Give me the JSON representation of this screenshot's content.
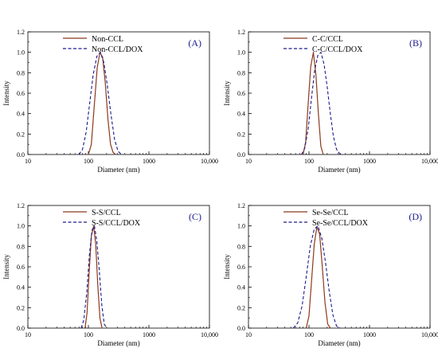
{
  "figure": {
    "panels_count": 4
  },
  "chart_data": [
    {
      "type": "line",
      "panel_label": "(A)",
      "xscale": "log",
      "xlim": [
        10,
        10000
      ],
      "ylim": [
        0,
        1.2
      ],
      "xticks": [
        "10",
        "100",
        "1000",
        "10,000"
      ],
      "yticks": [
        "0.0",
        "0.2",
        "0.4",
        "0.6",
        "0.8",
        "1.0",
        "1.2"
      ],
      "xlabel": "Diameter (nm)",
      "ylabel": "Intensity",
      "legend_position": "top",
      "series": [
        {
          "name": "Non-CCL",
          "style": "solid",
          "color": "#8b3a1c",
          "x": [
            100,
            112,
            125,
            140,
            155,
            172,
            190,
            210,
            232,
            256,
            282
          ],
          "y": [
            0.0,
            0.1,
            0.48,
            0.85,
            1.0,
            0.95,
            0.7,
            0.35,
            0.1,
            0.02,
            0.0
          ]
        },
        {
          "name": "Non-CCL/DOX",
          "style": "dashed",
          "color": "#1a1a8c",
          "x": [
            70,
            80,
            92,
            105,
            120,
            138,
            158,
            180,
            205,
            235,
            270,
            310,
            355
          ],
          "y": [
            0.0,
            0.05,
            0.22,
            0.5,
            0.78,
            0.96,
            1.0,
            0.9,
            0.68,
            0.4,
            0.15,
            0.03,
            0.0
          ]
        }
      ]
    },
    {
      "type": "line",
      "panel_label": "(B)",
      "xscale": "log",
      "xlim": [
        10,
        10000
      ],
      "ylim": [
        0,
        1.2
      ],
      "xticks": [
        "10",
        "100",
        "1000",
        "10,000"
      ],
      "yticks": [
        "0.0",
        "0.2",
        "0.4",
        "0.6",
        "0.8",
        "1.0",
        "1.2"
      ],
      "xlabel": "Diameter (nm)",
      "ylabel": "Intensity",
      "legend_position": "top",
      "series": [
        {
          "name": "C-C/CCL",
          "style": "solid",
          "color": "#8b3a1c",
          "x": [
            80,
            88,
            97,
            107,
            118,
            130,
            143,
            157,
            172
          ],
          "y": [
            0.0,
            0.12,
            0.5,
            0.86,
            1.0,
            0.78,
            0.4,
            0.08,
            0.0
          ]
        },
        {
          "name": "C-C/CCL/DOX",
          "style": "dashed",
          "color": "#1a1a8c",
          "x": [
            75,
            85,
            97,
            110,
            124,
            140,
            158,
            178,
            200,
            225,
            253,
            285,
            320,
            360
          ],
          "y": [
            0.0,
            0.06,
            0.25,
            0.55,
            0.82,
            0.97,
            1.0,
            0.88,
            0.66,
            0.4,
            0.18,
            0.05,
            0.01,
            0.0
          ]
        }
      ]
    },
    {
      "type": "line",
      "panel_label": "(C)",
      "xscale": "log",
      "xlim": [
        10,
        10000
      ],
      "ylim": [
        0,
        1.2
      ],
      "xticks": [
        "10",
        "100",
        "1000",
        "10,000"
      ],
      "yticks": [
        "0.0",
        "0.2",
        "0.4",
        "0.6",
        "0.8",
        "1.0",
        "1.2"
      ],
      "xlabel": "Diameter (nm)",
      "ylabel": "Intensity",
      "legend_position": "top",
      "series": [
        {
          "name": "S-S/CCL",
          "style": "solid",
          "color": "#8b3a1c",
          "x": [
            88,
            95,
            103,
            112,
            122,
            132,
            143,
            155,
            168
          ],
          "y": [
            0.0,
            0.15,
            0.55,
            0.9,
            1.0,
            0.82,
            0.42,
            0.1,
            0.0
          ]
        },
        {
          "name": "S-S/CCL/DOX",
          "style": "dashed",
          "color": "#1a1a8c",
          "x": [
            76,
            84,
            94,
            104,
            115,
            126,
            138,
            152,
            167,
            183,
            200
          ],
          "y": [
            0.0,
            0.08,
            0.35,
            0.72,
            0.96,
            1.0,
            0.85,
            0.55,
            0.22,
            0.04,
            0.0
          ]
        }
      ]
    },
    {
      "type": "line",
      "panel_label": "(D)",
      "xscale": "log",
      "xlim": [
        10,
        10000
      ],
      "ylim": [
        0,
        1.2
      ],
      "xticks": [
        "10",
        "100",
        "1000",
        "10,000"
      ],
      "yticks": [
        "0.0",
        "0.2",
        "0.4",
        "0.6",
        "0.8",
        "1.0",
        "1.2"
      ],
      "xlabel": "Diameter (nm)",
      "ylabel": "Intensity",
      "legend_position": "top",
      "series": [
        {
          "name": "Se-Se/CCL",
          "style": "solid",
          "color": "#8b3a1c",
          "x": [
            90,
            100,
            110,
            122,
            135,
            150,
            166,
            184,
            204,
            226
          ],
          "y": [
            0.0,
            0.12,
            0.45,
            0.82,
            0.99,
            0.92,
            0.6,
            0.25,
            0.04,
            0.0
          ]
        },
        {
          "name": "Se-Se/CCL/DOX",
          "style": "dashed",
          "color": "#1a1a8c",
          "x": [
            55,
            65,
            77,
            90,
            105,
            122,
            141,
            163,
            188,
            216,
            248,
            285,
            325
          ],
          "y": [
            0.0,
            0.05,
            0.22,
            0.5,
            0.8,
            0.97,
            1.0,
            0.88,
            0.64,
            0.36,
            0.13,
            0.02,
            0.0
          ]
        }
      ]
    }
  ]
}
